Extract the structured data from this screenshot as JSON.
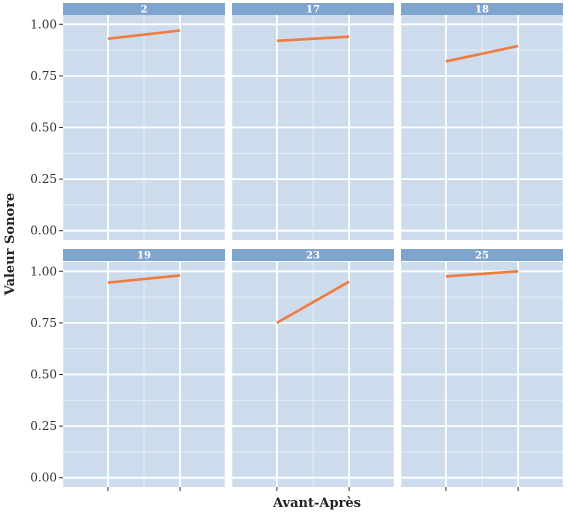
{
  "chart_data": {
    "type": "line",
    "layout": "facet-grid",
    "xlabel": "Avant-Après",
    "ylabel": "Valeur Sonore",
    "ylim": [
      0,
      1
    ],
    "yticks": [
      "0.00",
      "0.25",
      "0.50",
      "0.75",
      "1.00"
    ],
    "x_points": 2,
    "grid": true,
    "colors": {
      "panel_background": "#cddcec",
      "strip_background": "#7fa5cf",
      "grid": "#ffffff",
      "line": "#f07b3f"
    },
    "facets": [
      {
        "label": "2",
        "values": [
          0.93,
          0.97
        ]
      },
      {
        "label": "17",
        "values": [
          0.92,
          0.94
        ]
      },
      {
        "label": "18",
        "values": [
          0.82,
          0.895
        ]
      },
      {
        "label": "19",
        "values": [
          0.945,
          0.98
        ]
      },
      {
        "label": "23",
        "values": [
          0.75,
          0.95
        ]
      },
      {
        "label": "25",
        "values": [
          0.975,
          1.0
        ]
      }
    ]
  }
}
